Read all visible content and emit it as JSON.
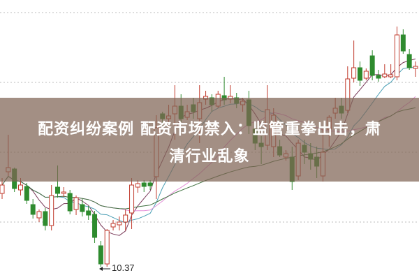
{
  "headline": {
    "line1": "配资纠纷案例 配资市场禁入：监管重拳出击，肃",
    "line2": "清行业乱象"
  },
  "chart_data": {
    "type": "candlestick",
    "title": "",
    "grid": true,
    "low_annotation": "10.37",
    "colors": {
      "up": "#c0392b",
      "down": "#2e8b2e",
      "ma": [
        "#7a3b5a",
        "#4a9fb5",
        "#e48fd8",
        "#3c6e3c"
      ],
      "grid": "#bbbbbb",
      "overlay": "#80645a"
    },
    "ylim": [
      10.2,
      14.4
    ],
    "candles": [
      {
        "o": 11.42,
        "h": 11.64,
        "l": 11.34,
        "c": 11.54
      },
      {
        "o": 11.73,
        "h": 12.26,
        "l": 11.67,
        "c": 11.79
      },
      {
        "o": 11.77,
        "h": 11.79,
        "l": 11.44,
        "c": 11.49
      },
      {
        "o": 11.47,
        "h": 11.64,
        "l": 11.39,
        "c": 11.54
      },
      {
        "o": 11.52,
        "h": 11.57,
        "l": 11.27,
        "c": 11.32
      },
      {
        "o": 11.26,
        "h": 11.34,
        "l": 11.06,
        "c": 11.12
      },
      {
        "o": 11.07,
        "h": 11.19,
        "l": 11.01,
        "c": 11.16
      },
      {
        "o": 11.16,
        "h": 11.21,
        "l": 10.89,
        "c": 10.96
      },
      {
        "o": 10.96,
        "h": 11.54,
        "l": 10.89,
        "c": 11.39
      },
      {
        "o": 11.51,
        "h": 11.82,
        "l": 11.36,
        "c": 11.42
      },
      {
        "o": 11.42,
        "h": 11.51,
        "l": 11.37,
        "c": 11.44
      },
      {
        "o": 11.42,
        "h": 11.47,
        "l": 11.12,
        "c": 11.17
      },
      {
        "o": 11.19,
        "h": 11.39,
        "l": 11.11,
        "c": 11.36
      },
      {
        "o": 11.26,
        "h": 11.34,
        "l": 11.09,
        "c": 11.16
      },
      {
        "o": 11.17,
        "h": 11.24,
        "l": 11.04,
        "c": 11.11
      },
      {
        "o": 11.12,
        "h": 11.17,
        "l": 10.71,
        "c": 10.79
      },
      {
        "o": 10.67,
        "h": 10.74,
        "l": 10.37,
        "c": 10.41
      },
      {
        "o": 10.41,
        "h": 10.91,
        "l": 10.37,
        "c": 10.89
      },
      {
        "o": 10.94,
        "h": 11.04,
        "l": 10.89,
        "c": 10.99
      },
      {
        "o": 10.97,
        "h": 11.09,
        "l": 10.89,
        "c": 11.01
      },
      {
        "o": 11.01,
        "h": 11.19,
        "l": 10.89,
        "c": 11.11
      },
      {
        "o": 11.14,
        "h": 11.64,
        "l": 10.91,
        "c": 11.54
      },
      {
        "o": 11.51,
        "h": 11.61,
        "l": 11.43,
        "c": 11.56
      },
      {
        "o": 11.57,
        "h": 11.61,
        "l": 11.44,
        "c": 11.52
      },
      {
        "o": 11.57,
        "h": 11.61,
        "l": 11.47,
        "c": 11.53
      },
      {
        "o": 11.66,
        "h": 12.54,
        "l": 11.34,
        "c": 12.36
      },
      {
        "o": 12.56,
        "h": 12.59,
        "l": 12.39,
        "c": 12.49
      },
      {
        "o": 12.49,
        "h": 12.69,
        "l": 12.39,
        "c": 12.53
      },
      {
        "o": 12.56,
        "h": 12.97,
        "l": 12.19,
        "c": 12.67
      },
      {
        "o": 12.67,
        "h": 12.84,
        "l": 12.44,
        "c": 12.49
      },
      {
        "o": 12.51,
        "h": 12.69,
        "l": 12.47,
        "c": 12.59
      },
      {
        "o": 12.69,
        "h": 12.79,
        "l": 12.49,
        "c": 12.59
      },
      {
        "o": 12.49,
        "h": 12.97,
        "l": 12.14,
        "c": 12.72
      },
      {
        "o": 12.77,
        "h": 12.89,
        "l": 12.69,
        "c": 12.81
      },
      {
        "o": 12.79,
        "h": 12.84,
        "l": 12.59,
        "c": 12.69
      },
      {
        "o": 12.67,
        "h": 12.89,
        "l": 12.64,
        "c": 12.84
      },
      {
        "o": 12.82,
        "h": 13.09,
        "l": 12.69,
        "c": 12.76
      },
      {
        "o": 12.77,
        "h": 12.97,
        "l": 12.71,
        "c": 12.81
      },
      {
        "o": 12.79,
        "h": 12.86,
        "l": 12.64,
        "c": 12.71
      },
      {
        "o": 12.69,
        "h": 12.79,
        "l": 12.59,
        "c": 12.74
      },
      {
        "o": 12.76,
        "h": 12.89,
        "l": 12.27,
        "c": 12.39
      },
      {
        "o": 12.34,
        "h": 12.44,
        "l": 12.04,
        "c": 12.14
      },
      {
        "o": 12.14,
        "h": 12.24,
        "l": 11.84,
        "c": 12.09
      },
      {
        "o": 12.11,
        "h": 12.97,
        "l": 12.04,
        "c": 12.62
      },
      {
        "o": 12.09,
        "h": 12.64,
        "l": 11.94,
        "c": 12.54
      },
      {
        "o": 12.09,
        "h": 12.19,
        "l": 11.94,
        "c": 11.97
      },
      {
        "o": 11.94,
        "h": 12.04,
        "l": 11.89,
        "c": 11.99
      },
      {
        "o": 11.94,
        "h": 12.09,
        "l": 11.47,
        "c": 11.59
      },
      {
        "o": 11.67,
        "h": 12.19,
        "l": 11.61,
        "c": 12.14
      },
      {
        "o": 12.11,
        "h": 12.19,
        "l": 11.84,
        "c": 12.01
      },
      {
        "o": 11.99,
        "h": 12.14,
        "l": 11.76,
        "c": 11.91
      },
      {
        "o": 11.94,
        "h": 12.09,
        "l": 11.64,
        "c": 11.81
      },
      {
        "o": 11.67,
        "h": 12.34,
        "l": 11.59,
        "c": 12.01
      },
      {
        "o": 12.34,
        "h": 12.54,
        "l": 12.09,
        "c": 12.51
      },
      {
        "o": 12.57,
        "h": 12.79,
        "l": 12.49,
        "c": 12.64
      },
      {
        "o": 12.67,
        "h": 12.79,
        "l": 12.49,
        "c": 12.57
      },
      {
        "o": 12.61,
        "h": 13.24,
        "l": 12.57,
        "c": 13.06
      },
      {
        "o": 13.07,
        "h": 13.61,
        "l": 13.01,
        "c": 13.22
      },
      {
        "o": 13.22,
        "h": 13.31,
        "l": 12.96,
        "c": 13.04
      },
      {
        "o": 13.07,
        "h": 13.21,
        "l": 13.04,
        "c": 13.17
      },
      {
        "o": 13.39,
        "h": 13.47,
        "l": 13.04,
        "c": 13.11
      },
      {
        "o": 13.11,
        "h": 13.19,
        "l": 13.02,
        "c": 13.07
      },
      {
        "o": 13.09,
        "h": 13.27,
        "l": 13.07,
        "c": 13.13
      },
      {
        "o": 13.09,
        "h": 13.27,
        "l": 13.07,
        "c": 13.12
      },
      {
        "o": 13.09,
        "h": 13.81,
        "l": 13.04,
        "c": 13.69
      },
      {
        "o": 13.69,
        "h": 13.77,
        "l": 13.42,
        "c": 13.46
      },
      {
        "o": 13.41,
        "h": 13.49,
        "l": 13.19,
        "c": 13.22
      },
      {
        "o": 13.21,
        "h": 13.31,
        "l": 13.09,
        "c": 13.24
      }
    ]
  }
}
